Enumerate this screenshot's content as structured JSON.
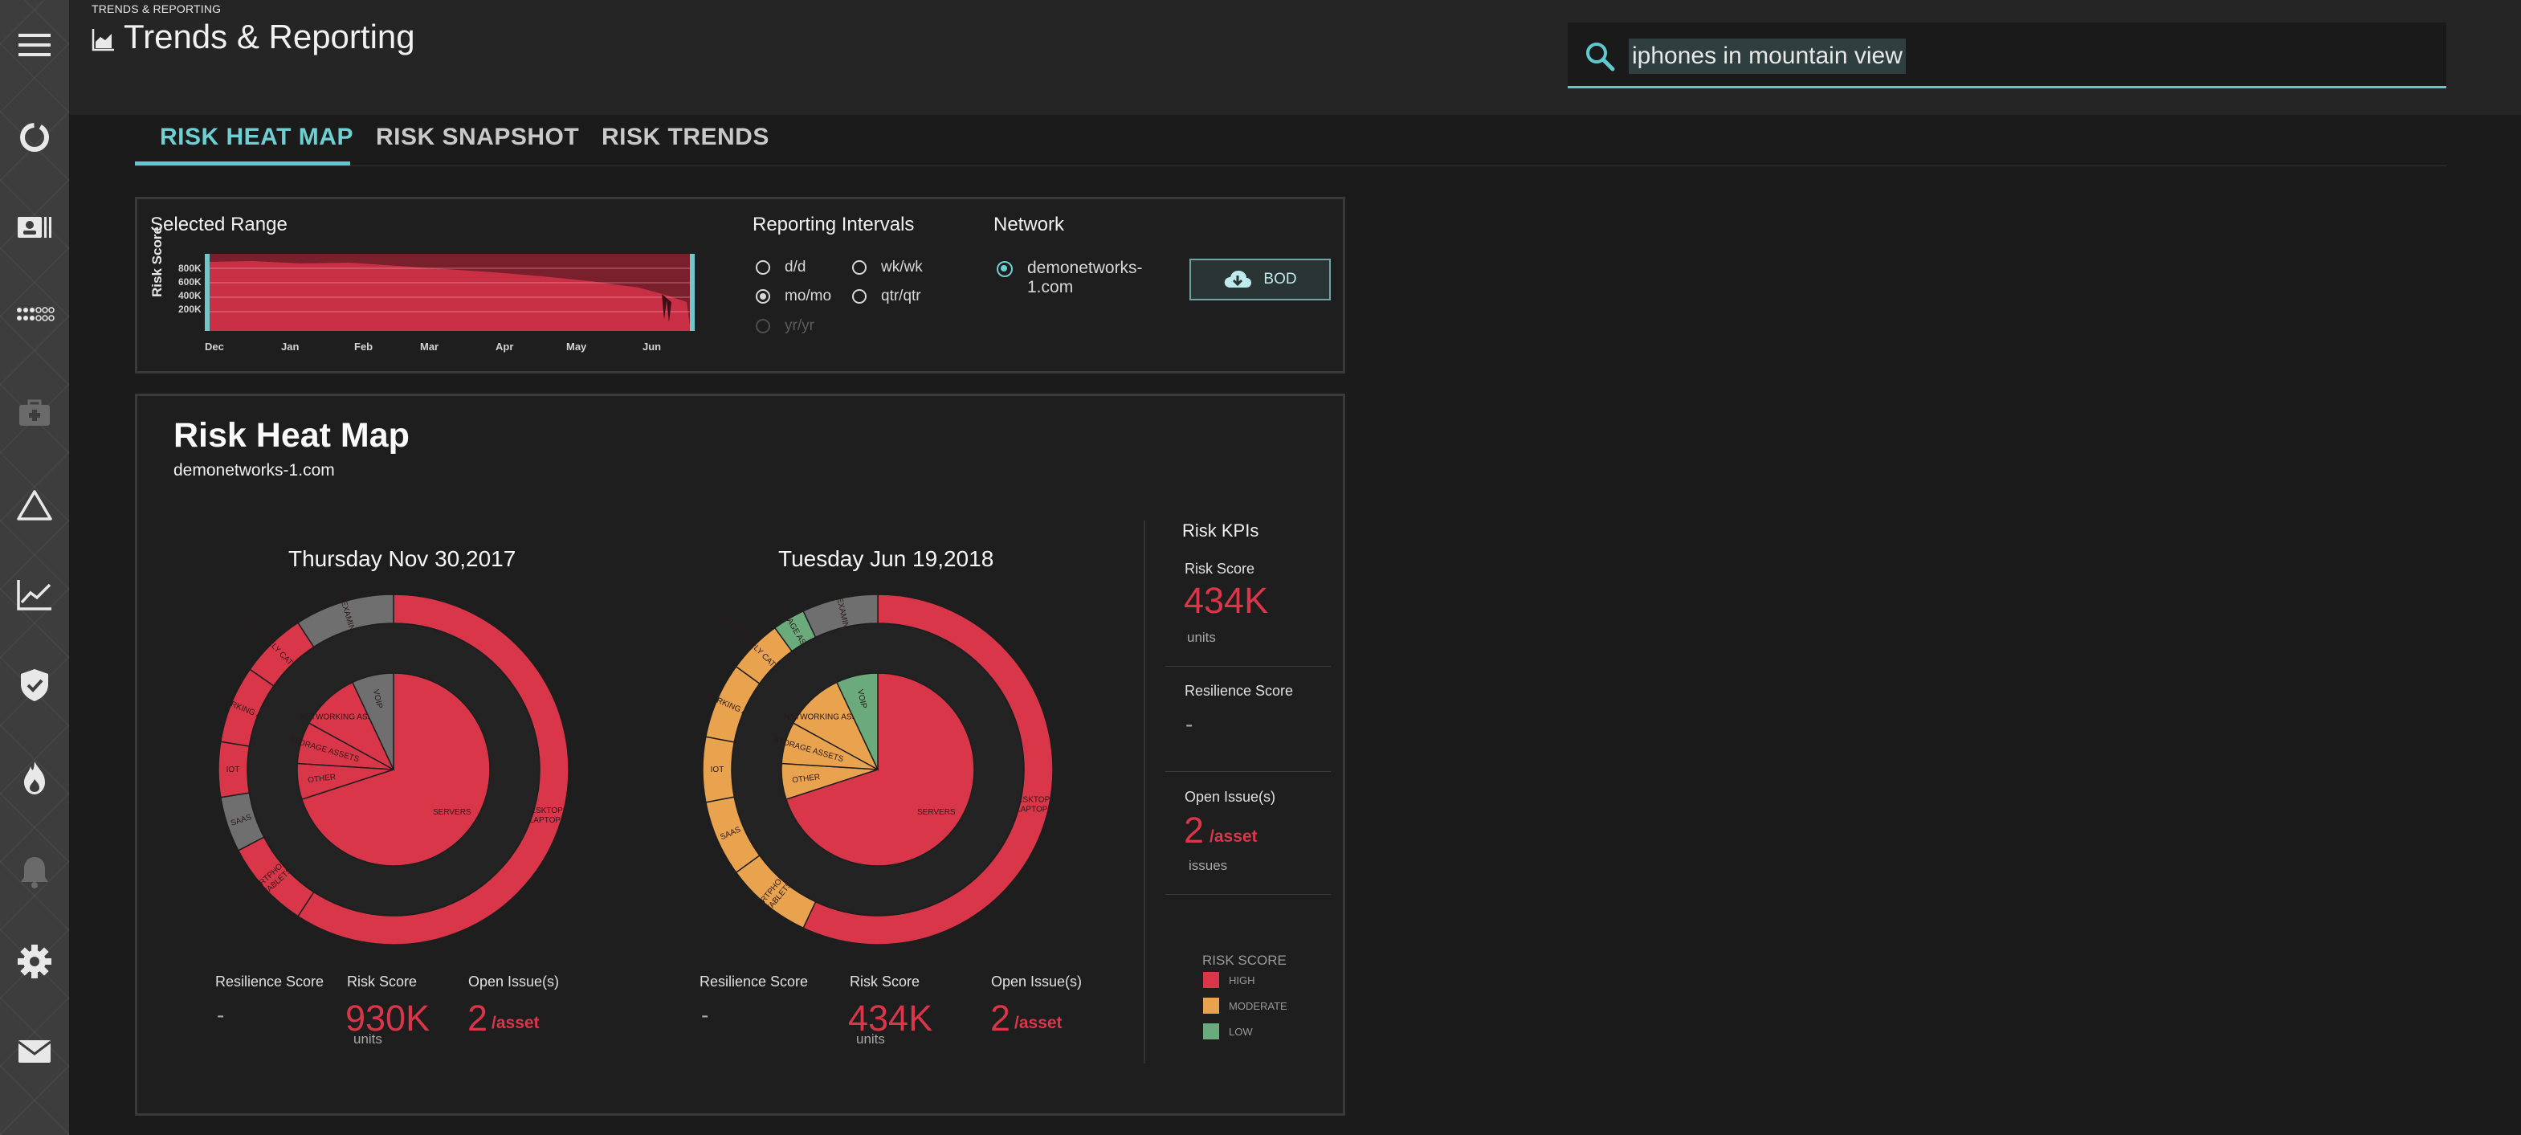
{
  "breadcrumb": "TRENDS & REPORTING",
  "page_title": "Trends & Reporting",
  "search": {
    "value": "iphones in mountain view"
  },
  "tabs": [
    {
      "label": "RISK HEAT MAP",
      "active": true
    },
    {
      "label": "RISK SNAPSHOT",
      "active": false
    },
    {
      "label": "RISK TRENDS",
      "active": false
    }
  ],
  "range": {
    "label": "Selected Range",
    "ylabel": "Risk Score",
    "yticks": [
      "800K",
      "600K",
      "400K",
      "200K"
    ],
    "xticks": [
      "Dec",
      "Jan",
      "Feb",
      "Mar",
      "Apr",
      "May",
      "Jun"
    ]
  },
  "intervals": {
    "label": "Reporting Intervals",
    "options": [
      {
        "label": "d/d",
        "selected": false,
        "disabled": false
      },
      {
        "label": "wk/wk",
        "selected": false,
        "disabled": false
      },
      {
        "label": "mo/mo",
        "selected": true,
        "disabled": false
      },
      {
        "label": "qtr/qtr",
        "selected": false,
        "disabled": false
      },
      {
        "label": "yr/yr",
        "selected": false,
        "disabled": true
      }
    ]
  },
  "network": {
    "label": "Network",
    "option_line1": "demonetworks-",
    "option_line2": "1.com",
    "bod_label": "BOD"
  },
  "heatmap": {
    "title": "Risk Heat Map",
    "subtitle": "demonetworks-1.com",
    "snapshots": [
      {
        "date": "Thursday Nov 30,2017",
        "resilience_label": "Resilience Score",
        "resilience_value": "-",
        "risk_label": "Risk Score",
        "risk_value": "930K",
        "risk_unit": "units",
        "issues_label": "Open Issue(s)",
        "issues_value": "2",
        "issues_unit": "/asset"
      },
      {
        "date": "Tuesday Jun 19,2018",
        "resilience_label": "Resilience Score",
        "resilience_value": "-",
        "risk_label": "Risk Score",
        "risk_value": "434K",
        "risk_unit": "units",
        "issues_label": "Open Issue(s)",
        "issues_value": "2",
        "issues_unit": "/asset"
      }
    ],
    "kpis": {
      "title": "Risk KPIs",
      "risk_label": "Risk Score",
      "risk_value": "434K",
      "risk_unit": "units",
      "resilience_label": "Resilience Score",
      "resilience_value": "-",
      "issues_label": "Open Issue(s)",
      "issues_value": "2",
      "issues_unit": "/asset",
      "issues_sub": "issues"
    },
    "legend": {
      "title": "RISK SCORE",
      "items": [
        {
          "label": "HIGH",
          "color": "#d9364a"
        },
        {
          "label": "MODERATE",
          "color": "#e9a34f"
        },
        {
          "label": "LOW",
          "color": "#6bab7b"
        }
      ]
    }
  },
  "colors": {
    "accent": "#5fc9cf",
    "high": "#d9364a",
    "moderate": "#e9a34f",
    "low": "#6bab7b",
    "unexamined": "#6f6f6f"
  },
  "chart_data": [
    {
      "type": "pie",
      "title": "Thursday Nov 30,2017",
      "rings": {
        "outer": [
          {
            "label": "DESKTOPS/ LAPTOPS",
            "value": 58,
            "level": "high"
          },
          {
            "label": "SMARTPHONES/ TABLETS",
            "value": 8,
            "level": "high"
          },
          {
            "label": "SAAS",
            "value": 5,
            "level": "unexamined"
          },
          {
            "label": "IOT",
            "value": 5,
            "level": "high"
          },
          {
            "label": "NETWORKING ASSETS",
            "value": 7,
            "level": "high"
          },
          {
            "label": "IMPROPERLY CATEGORIZED",
            "value": 6,
            "level": "high"
          },
          {
            "label": "UNEXAMINED",
            "value": 9,
            "level": "unexamined"
          }
        ],
        "inner": [
          {
            "label": "SERVERS",
            "value": 70,
            "level": "high"
          },
          {
            "label": "OTHER",
            "value": 6,
            "level": "high"
          },
          {
            "label": "STORAGE ASSETS",
            "value": 7,
            "level": "high"
          },
          {
            "label": "NETWORKING ASSETS",
            "value": 10,
            "level": "high"
          },
          {
            "label": "VOIP",
            "value": 7,
            "level": "unexamined"
          }
        ]
      }
    },
    {
      "type": "pie",
      "title": "Tuesday Jun 19,2018",
      "rings": {
        "outer": [
          {
            "label": "DESKTOPS/ LAPTOPS",
            "value": 57,
            "level": "high"
          },
          {
            "label": "SMARTPHONES/ TABLETS",
            "value": 8,
            "level": "moderate"
          },
          {
            "label": "SAAS",
            "value": 7,
            "level": "moderate"
          },
          {
            "label": "IOT",
            "value": 6,
            "level": "moderate"
          },
          {
            "label": "NETWORKING ASSETS",
            "value": 7,
            "level": "moderate"
          },
          {
            "label": "IMPROPERLY CATEGORIZED",
            "value": 5,
            "level": "moderate"
          },
          {
            "label": "STORAGE ASSETS",
            "value": 3,
            "level": "low"
          },
          {
            "label": "UNEXAMINED",
            "value": 7,
            "level": "unexamined"
          }
        ],
        "inner": [
          {
            "label": "SERVERS",
            "value": 70,
            "level": "high"
          },
          {
            "label": "OTHER",
            "value": 6,
            "level": "moderate"
          },
          {
            "label": "STORAGE ASSETS",
            "value": 7,
            "level": "moderate"
          },
          {
            "label": "NETWORKING ASSETS",
            "value": 10,
            "level": "moderate"
          },
          {
            "label": "VOIP",
            "value": 7,
            "level": "low"
          }
        ]
      }
    }
  ]
}
